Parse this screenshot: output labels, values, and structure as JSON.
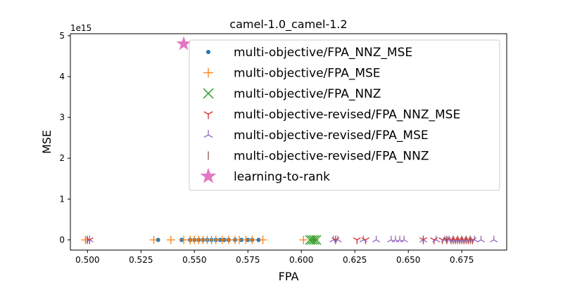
{
  "chart_data": {
    "type": "scatter",
    "title": "camel-1.0_camel-1.2",
    "xlabel": "FPA",
    "ylabel": "MSE",
    "y_scale_text": "1e15",
    "xlim": [
      0.492,
      0.696
    ],
    "ylim": [
      -0.25,
      5.05
    ],
    "y_scale": 1000000000000000.0,
    "xticks": [
      "0.500",
      "0.525",
      "0.550",
      "0.575",
      "0.600",
      "0.625",
      "0.650",
      "0.675"
    ],
    "yticks": [
      "0",
      "1",
      "2",
      "3",
      "4",
      "5"
    ],
    "grid": false,
    "legend_position": "upper-right",
    "series": [
      {
        "name": "multi-objective/FPA_NNZ_MSE",
        "marker": "dot",
        "color": "#1f77b4",
        "x": [
          0.533,
          0.544,
          0.548,
          0.55,
          0.552,
          0.554,
          0.556,
          0.558,
          0.56,
          0.562,
          0.564,
          0.566,
          0.569,
          0.572,
          0.575,
          0.577,
          0.58
        ],
        "y": [
          0,
          0,
          0,
          0,
          0,
          0,
          0,
          0,
          0,
          0,
          0,
          0,
          0,
          0,
          0,
          0,
          0
        ]
      },
      {
        "name": "multi-objective/FPA_MSE",
        "marker": "plus",
        "color": "#ff7f0e",
        "x": [
          0.499,
          0.531,
          0.539,
          0.545,
          0.548,
          0.55,
          0.552,
          0.554,
          0.556,
          0.558,
          0.56,
          0.563,
          0.566,
          0.569,
          0.571,
          0.574,
          0.577,
          0.582,
          0.601,
          0.606
        ],
        "y": [
          0,
          0,
          0,
          0,
          0,
          0,
          0,
          0,
          0,
          0,
          0,
          0,
          0,
          0,
          0,
          0,
          0,
          0,
          0,
          0
        ]
      },
      {
        "name": "multi-objective/FPA_NNZ",
        "marker": "x",
        "color": "#2ca02c",
        "x": [
          0.604,
          0.605,
          0.606,
          0.607
        ],
        "y": [
          0,
          0,
          0,
          0
        ]
      },
      {
        "name": "multi-objective-revised/FPA_NNZ_MSE",
        "marker": "tri_down",
        "color": "#d62728",
        "x": [
          0.501,
          0.616,
          0.626,
          0.63,
          0.657,
          0.662,
          0.666,
          0.668,
          0.67,
          0.672,
          0.674,
          0.676,
          0.678,
          0.68
        ],
        "y": [
          0,
          0,
          0,
          0,
          0,
          0,
          0,
          0,
          0,
          0,
          0,
          0,
          0,
          0
        ]
      },
      {
        "name": "multi-objective-revised/FPA_MSE",
        "marker": "tri_up",
        "color": "#9467bd",
        "x": [
          0.501,
          0.615,
          0.617,
          0.629,
          0.635,
          0.642,
          0.644,
          0.646,
          0.648,
          0.657,
          0.663,
          0.667,
          0.669,
          0.671,
          0.673,
          0.675,
          0.677,
          0.679,
          0.681,
          0.684,
          0.69
        ],
        "y": [
          0,
          0,
          0,
          0,
          0,
          0,
          0,
          0,
          0,
          0,
          0,
          0,
          0,
          0,
          0,
          0,
          0,
          0,
          0,
          0,
          0
        ]
      },
      {
        "name": "multi-objective-revised/FPA_NNZ",
        "marker": "vline",
        "color": "#8c564b",
        "x": [
          0.5,
          0.616,
          0.657,
          0.668,
          0.671,
          0.673,
          0.675,
          0.677,
          0.679
        ],
        "y": [
          0,
          0,
          0,
          0,
          0,
          0,
          0,
          0,
          0
        ]
      },
      {
        "name": "learning-to-rank",
        "marker": "star",
        "color": "#e377c2",
        "x": [
          0.545
        ],
        "y": [
          4.8
        ]
      }
    ]
  }
}
